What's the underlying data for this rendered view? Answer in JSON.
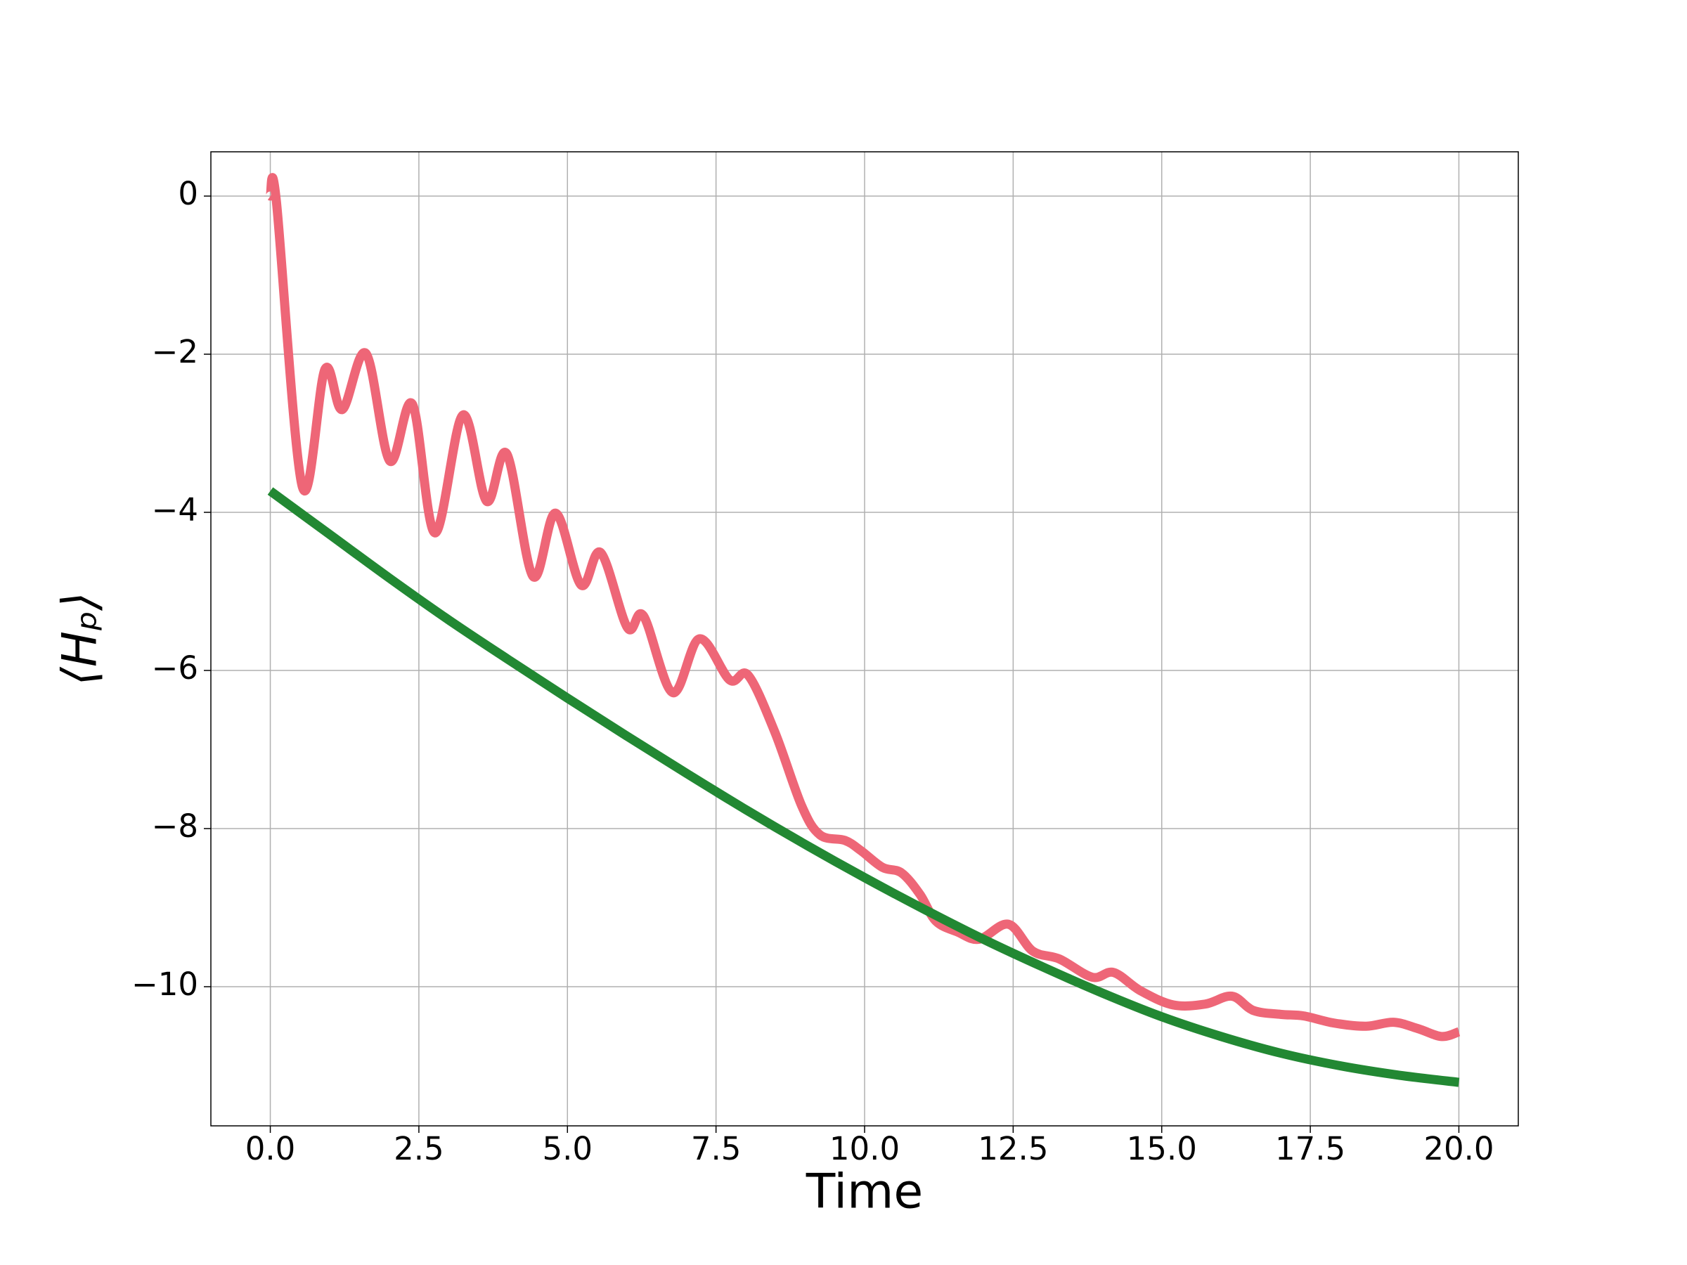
{
  "chart_data": {
    "type": "line",
    "xlabel": "Time",
    "ylabel": "⟨Hₚ⟩",
    "xlim": [
      -1.0,
      21.0
    ],
    "ylim": [
      -11.76,
      0.56
    ],
    "xticks": [
      {
        "value": 0,
        "label": "0.0"
      },
      {
        "value": 2.5,
        "label": "2.5"
      },
      {
        "value": 5,
        "label": "5.0"
      },
      {
        "value": 7.5,
        "label": "7.5"
      },
      {
        "value": 10,
        "label": "10.0"
      },
      {
        "value": 12.5,
        "label": "12.5"
      },
      {
        "value": 15,
        "label": "15.0"
      },
      {
        "value": 17.5,
        "label": "17.5"
      },
      {
        "value": 20,
        "label": "20.0"
      }
    ],
    "yticks": [
      {
        "value": -10,
        "label": "−10"
      },
      {
        "value": -8,
        "label": "−8"
      },
      {
        "value": -6,
        "label": "−6"
      },
      {
        "value": -4,
        "label": "−4"
      },
      {
        "value": -2,
        "label": "−2"
      },
      0
    ],
    "grid": true,
    "series": [
      {
        "color": "#ee6677",
        "x": [
          0,
          0.1,
          0.54,
          0.92,
          1.21,
          1.61,
          2.01,
          2.39,
          2.77,
          3.24,
          3.64,
          3.98,
          4.42,
          4.8,
          5.23,
          5.56,
          6.01,
          6.28,
          6.77,
          7.22,
          7.73,
          8.04,
          8.49,
          8.94,
          9.25,
          9.67,
          9.94,
          10.3,
          10.62,
          10.93,
          11.2,
          11.57,
          11.93,
          12.42,
          12.83,
          13.28,
          13.83,
          14.19,
          14.64,
          15.19,
          15.73,
          16.18,
          16.54,
          17.0,
          17.39,
          17.9,
          18.44,
          18.9,
          19.31,
          19.71,
          20.0
        ],
        "values": [
          0,
          -0.05,
          -3.68,
          -2.19,
          -2.7,
          -1.99,
          -3.35,
          -2.63,
          -4.26,
          -2.77,
          -3.86,
          -3.26,
          -4.81,
          -4.01,
          -4.92,
          -4.51,
          -5.46,
          -5.31,
          -6.28,
          -5.6,
          -6.12,
          -6.06,
          -6.78,
          -7.71,
          -8.08,
          -8.15,
          -8.28,
          -8.49,
          -8.56,
          -8.83,
          -9.17,
          -9.31,
          -9.4,
          -9.21,
          -9.55,
          -9.65,
          -9.88,
          -9.82,
          -10.05,
          -10.23,
          -10.22,
          -10.12,
          -10.3,
          -10.35,
          -10.37,
          -10.46,
          -10.5,
          -10.45,
          -10.53,
          -10.63,
          -10.57
        ]
      },
      {
        "color": "#228833",
        "x": [
          0,
          1,
          2,
          3,
          4,
          5,
          6,
          7,
          8,
          9,
          10,
          11,
          12,
          13,
          14,
          15,
          16,
          17,
          18,
          19,
          20
        ],
        "values": [
          -3.73,
          -4.28,
          -4.83,
          -5.36,
          -5.86,
          -6.35,
          -6.83,
          -7.3,
          -7.76,
          -8.2,
          -8.62,
          -9.02,
          -9.4,
          -9.75,
          -10.08,
          -10.38,
          -10.63,
          -10.84,
          -11.0,
          -11.12,
          -11.21
        ]
      }
    ]
  }
}
